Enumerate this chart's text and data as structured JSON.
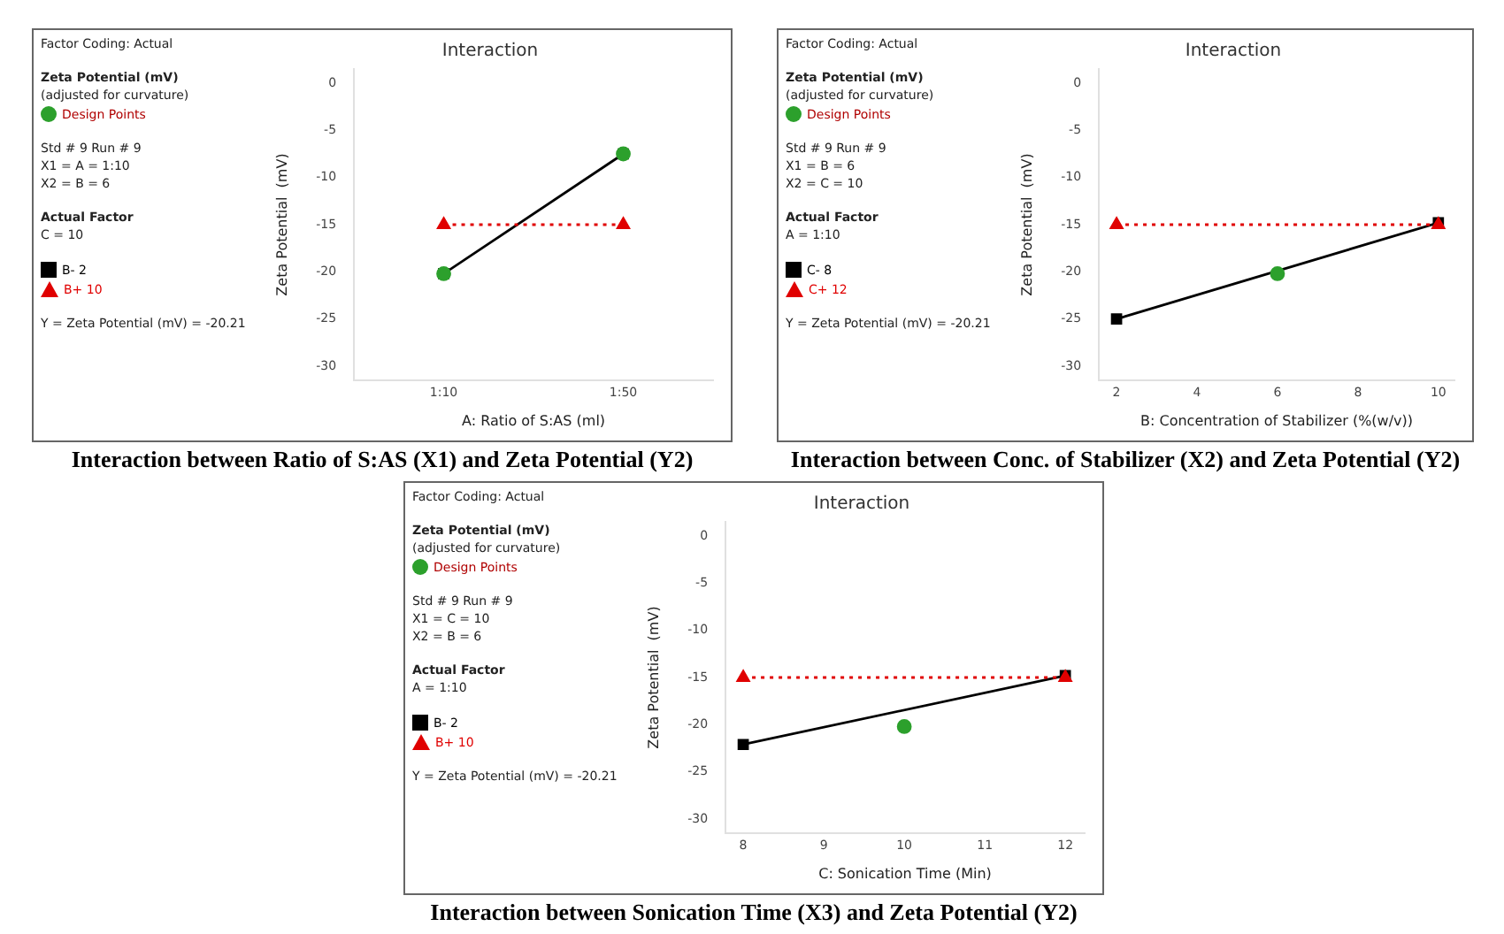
{
  "chart_data": [
    {
      "type": "line",
      "title": "Interaction",
      "xlabel": "A: Ratio of S:AS (ml)",
      "ylabel": "Zeta Potential  (mV)",
      "categories": [
        "1:10",
        "1:50"
      ],
      "ylim": [
        -31.5,
        1.5
      ],
      "yticks": [
        0,
        -5,
        -10,
        -15,
        -20,
        -25,
        -30
      ],
      "legend": "left",
      "annotations": [
        "Factor Coding: Actual",
        "Zeta Potential  (mV)",
        "(adjusted for curvature)",
        "Std # 9 Run # 9",
        "X1 = A = 1:10",
        "X2 = B = 6",
        "Actual Factor",
        "C = 10",
        "Y = Zeta Potential  (mV) = -20.21",
        "Interaction between Ratio of S:AS (X1) and Zeta Potential (Y2)"
      ],
      "series": [
        {
          "name": "B- 2",
          "color": "#000000",
          "values": [
            -20.2,
            -7.5
          ],
          "marker": "square"
        },
        {
          "name": "B+ 10",
          "color": "#e00000",
          "values": [
            -15,
            -15
          ],
          "marker": "triangle",
          "line_style": "dotted"
        },
        {
          "name": "Design Points",
          "type": "scatter",
          "color": "#2ca02c",
          "x": [
            "1:10",
            "1:50"
          ],
          "values": [
            -20.2,
            -7.5
          ],
          "marker": "circle"
        }
      ]
    },
    {
      "type": "line",
      "title": "Interaction",
      "xlabel": "B: Concentration of Stabilizer (%(w/v))",
      "ylabel": "Zeta Potential  (mV)",
      "x": [
        2,
        10
      ],
      "xlim": [
        1.56,
        10.4
      ],
      "xticks": [
        2,
        4,
        6,
        8,
        10
      ],
      "ylim": [
        -31.5,
        1.5
      ],
      "yticks": [
        0,
        -5,
        -10,
        -15,
        -20,
        -25,
        -30
      ],
      "legend": "left",
      "annotations": [
        "Factor Coding: Actual",
        "Zeta Potential  (mV)",
        "(adjusted for curvature)",
        "Std # 9 Run # 9",
        "X1 = B = 6",
        "X2 = C = 10",
        "Actual Factor",
        "A = 1:10",
        "Y = Zeta Potential  (mV) = -20.21",
        "Interaction between Conc. of Stabilizer (X2) and Zeta Potential (Y2)"
      ],
      "series": [
        {
          "name": "C- 8",
          "color": "#000000",
          "values": [
            -25,
            -14.8
          ],
          "marker": "square"
        },
        {
          "name": "C+ 12",
          "color": "#e00000",
          "values": [
            -15,
            -15
          ],
          "marker": "triangle",
          "line_style": "dotted"
        },
        {
          "name": "Design Points",
          "type": "scatter",
          "color": "#2ca02c",
          "x": [
            6
          ],
          "values": [
            -20.2
          ],
          "marker": "circle"
        }
      ]
    },
    {
      "type": "line",
      "title": "Interaction",
      "xlabel": "C: Sonication Time (Min)",
      "ylabel": "Zeta Potential  (mV)",
      "x": [
        8,
        12
      ],
      "xlim": [
        7.78,
        12.24
      ],
      "xticks": [
        8,
        9,
        10,
        11,
        12
      ],
      "ylim": [
        -31.5,
        1.5
      ],
      "yticks": [
        0,
        -5,
        -10,
        -15,
        -20,
        -25,
        -30
      ],
      "legend": "left",
      "annotations": [
        "Factor Coding: Actual",
        "Zeta Potential  (mV)",
        "(adjusted for curvature)",
        "Std # 9 Run # 9",
        "X1 = C = 10",
        "X2 = B = 6",
        "Actual Factor",
        "A = 1:10",
        "Y = Zeta Potential  (mV) = -20.21",
        "Interaction between Sonication Time (X3) and Zeta Potential (Y2)"
      ],
      "series": [
        {
          "name": "B- 2",
          "color": "#000000",
          "values": [
            -22.1,
            -14.8
          ],
          "marker": "square"
        },
        {
          "name": "B+ 10",
          "color": "#e00000",
          "values": [
            -15,
            -15
          ],
          "marker": "triangle",
          "line_style": "dotted"
        },
        {
          "name": "Design Points",
          "type": "scatter",
          "color": "#2ca02c",
          "x": [
            10
          ],
          "values": [
            -20.2
          ],
          "marker": "circle"
        }
      ]
    }
  ]
}
